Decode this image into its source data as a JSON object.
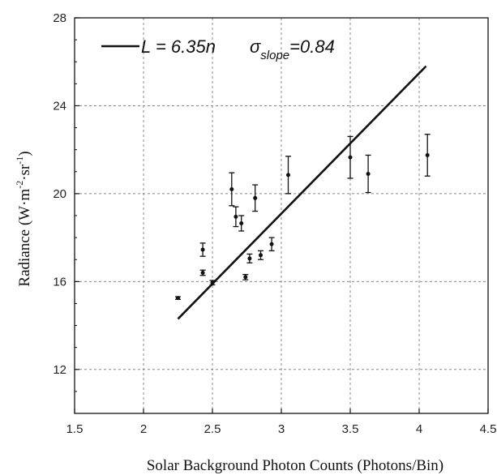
{
  "chart_data": {
    "type": "scatter",
    "xlabel": "Solar Background Photon Counts (Photons/Bin)",
    "ylabel": "Radiance (W·m-2·sr-1)",
    "ylabel_parts": {
      "pre": "Radiance (W·m",
      "e1": "-2",
      "mid": "·sr",
      "e2": "-1",
      "post": ")"
    },
    "xlim": [
      1.5,
      4.5
    ],
    "ylim": [
      10,
      28
    ],
    "xticks": [
      1.5,
      2,
      2.5,
      3,
      3.5,
      4,
      4.5
    ],
    "xtick_labels": [
      "1.5",
      "2",
      "2.5",
      "3",
      "3.5",
      "4",
      "4.5"
    ],
    "yticks": [
      12,
      16,
      20,
      24,
      28
    ],
    "ytick_labels": [
      "12",
      "16",
      "20",
      "24",
      "28"
    ],
    "grid": true,
    "legend": {
      "position": "top-left",
      "var": "L",
      "equation": " = 6.35n",
      "sigma": "σ",
      "sub": "slope",
      "value": "=0.84"
    },
    "fit_line": {
      "x": [
        2.25,
        4.05
      ],
      "y": [
        14.3,
        25.8
      ]
    },
    "points": [
      {
        "x": 2.25,
        "y": 15.25,
        "err": 0.06
      },
      {
        "x": 2.43,
        "y": 17.45,
        "err": 0.3
      },
      {
        "x": 2.43,
        "y": 16.4,
        "err": 0.12
      },
      {
        "x": 2.5,
        "y": 15.95,
        "err": 0.1
      },
      {
        "x": 2.64,
        "y": 20.2,
        "err": 0.75
      },
      {
        "x": 2.67,
        "y": 18.95,
        "err": 0.45
      },
      {
        "x": 2.71,
        "y": 18.65,
        "err": 0.35
      },
      {
        "x": 2.74,
        "y": 16.2,
        "err": 0.12
      },
      {
        "x": 2.77,
        "y": 17.05,
        "err": 0.2
      },
      {
        "x": 2.81,
        "y": 19.8,
        "err": 0.6
      },
      {
        "x": 2.85,
        "y": 17.2,
        "err": 0.2
      },
      {
        "x": 2.93,
        "y": 17.7,
        "err": 0.3
      },
      {
        "x": 3.05,
        "y": 20.85,
        "err": 0.85
      },
      {
        "x": 3.5,
        "y": 21.65,
        "err": 0.95
      },
      {
        "x": 3.63,
        "y": 20.9,
        "err": 0.85
      },
      {
        "x": 4.06,
        "y": 21.75,
        "err": 0.95
      }
    ]
  }
}
